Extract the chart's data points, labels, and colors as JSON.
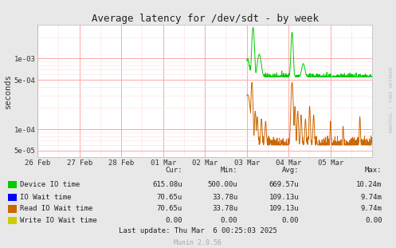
{
  "title": "Average latency for /dev/sdt - by week",
  "ylabel": "seconds",
  "background_color": "#e8e8e8",
  "plot_bg_color": "#ffffff",
  "grid_color": "#ff9999",
  "minor_grid_color": "#ffdddd",
  "legend_entries": [
    {
      "label": "Device IO time",
      "color": "#00cc00"
    },
    {
      "label": "IO Wait time",
      "color": "#0000ff"
    },
    {
      "label": "Read IO Wait time",
      "color": "#cc6600"
    },
    {
      "label": "Write IO Wait time",
      "color": "#cccc00"
    }
  ],
  "legend_stats": [
    {
      "cur": "615.08u",
      "min": "500.00u",
      "avg": "669.57u",
      "max": "10.24m"
    },
    {
      "cur": "70.65u",
      "min": "33.78u",
      "avg": "109.13u",
      "max": "9.74m"
    },
    {
      "cur": "70.65u",
      "min": "33.78u",
      "avg": "109.13u",
      "max": "9.74m"
    },
    {
      "cur": "0.00",
      "min": "0.00",
      "avg": "0.00",
      "max": "0.00"
    }
  ],
  "last_update": "Last update: Thu Mar  6 00:25:03 2025",
  "munin_version": "Munin 2.0.56",
  "watermark": "RRDTOOL / TOBI OETIKER",
  "x_tick_labels": [
    "26 Feb",
    "27 Feb",
    "28 Feb",
    "01 Mar",
    "02 Mar",
    "03 Mar",
    "04 Mar",
    "05 Mar"
  ],
  "green_color": "#00cc00",
  "orange_color": "#cc6600"
}
